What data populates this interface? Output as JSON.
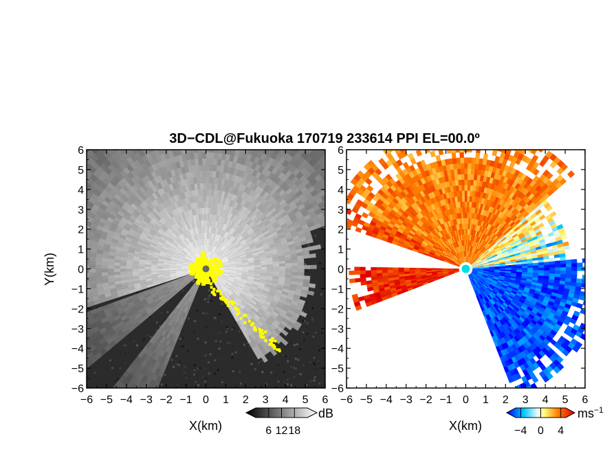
{
  "title": "3D−CDL@Fukuoka 170719 233614 PPI EL=00.0º",
  "chart_data": [
    {
      "type": "heatmap",
      "panel": "left",
      "quantity": "backscatter intensity",
      "xlabel": "X(km)",
      "ylabel": "Y(km)",
      "xlim": [
        -6,
        6
      ],
      "ylim": [
        -6,
        6
      ],
      "xticks": [
        "−6",
        "−5",
        "−4",
        "−3",
        "−2",
        "−1",
        "0",
        "1",
        "2",
        "3",
        "4",
        "5",
        "6"
      ],
      "yticks": [
        "6",
        "5",
        "4",
        "3",
        "2",
        "1",
        "0",
        "−1",
        "−2",
        "−3",
        "−4",
        "−5",
        "−6"
      ],
      "colorbar": {
        "unit": "dB",
        "ticks": [
          6,
          12,
          18
        ],
        "range": [
          0,
          24
        ],
        "colormap": "grayscale",
        "mask_color": "#ffff00"
      },
      "noise_sector_deg": [
        198,
        248
      ],
      "blank_sector_deg": [
        248,
        300
      ],
      "strong_return_radius_km": 0.8
    },
    {
      "type": "heatmap",
      "panel": "right",
      "quantity": "Doppler velocity",
      "xlabel": "X(km)",
      "ylabel": "",
      "xlim": [
        -6,
        6
      ],
      "ylim": [
        -6,
        6
      ],
      "xticks": [
        "−6",
        "−5",
        "−4",
        "−3",
        "−2",
        "−1",
        "0",
        "1",
        "2",
        "3",
        "4",
        "5",
        "6"
      ],
      "yticks": [
        "6",
        "5",
        "4",
        "3",
        "2",
        "1",
        "0",
        "−1",
        "−2",
        "−3",
        "−4",
        "−5",
        "−6"
      ],
      "colorbar": {
        "unit": "ms−1",
        "ticks": [
          -4,
          0,
          4
        ],
        "range": [
          -5,
          5
        ],
        "colormap": "blue-cyan-white-yellow-red"
      },
      "positive_sector_deg": [
        90,
        180
      ],
      "negative_sector_deg": [
        290,
        360
      ],
      "data_sector_deg": [
        165,
        200
      ]
    }
  ]
}
